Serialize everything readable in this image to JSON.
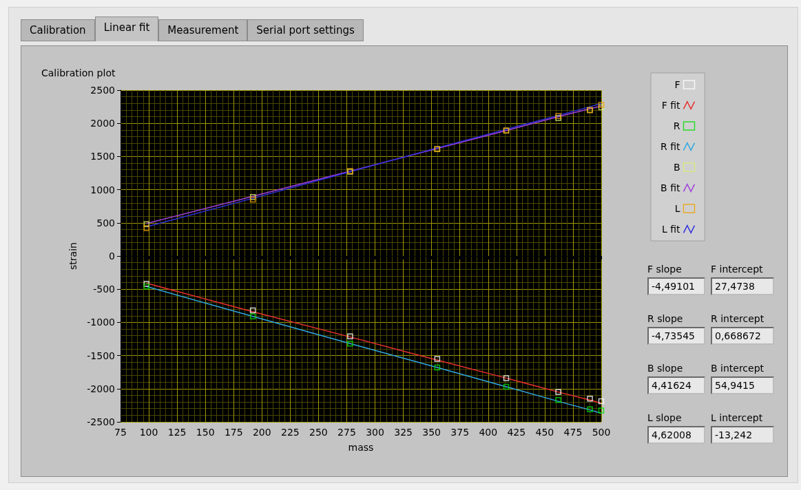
{
  "chart_data": {
    "type": "scatter",
    "title": "Calibration plot",
    "xlabel": "mass",
    "ylabel": "strain",
    "xlim": [
      75,
      500
    ],
    "xticks": [
      75,
      {
        "value": 80,
        "label": null
      },
      {
        "value": 85,
        "label": null
      },
      {
        "value": 90,
        "label": null
      },
      {
        "value": 95,
        "label": null
      },
      100,
      {
        "value": 105,
        "label": null
      },
      {
        "value": 110,
        "label": null
      },
      {
        "value": 115,
        "label": null
      },
      {
        "value": 120,
        "label": null
      },
      125,
      {
        "value": 130,
        "label": null
      },
      {
        "value": 135,
        "label": null
      },
      {
        "value": 140,
        "label": null
      },
      {
        "value": 145,
        "label": null
      },
      150,
      {
        "value": 155,
        "label": null
      },
      {
        "value": 160,
        "label": null
      },
      {
        "value": 165,
        "label": null
      },
      {
        "value": 170,
        "label": null
      },
      175,
      {
        "value": 180,
        "label": null
      },
      {
        "value": 185,
        "label": null
      },
      {
        "value": 190,
        "label": null
      },
      {
        "value": 195,
        "label": null
      },
      200,
      {
        "value": 205,
        "label": null
      },
      {
        "value": 210,
        "label": null
      },
      {
        "value": 215,
        "label": null
      },
      {
        "value": 220,
        "label": null
      },
      225,
      {
        "value": 230,
        "label": null
      },
      {
        "value": 235,
        "label": null
      },
      {
        "value": 240,
        "label": null
      },
      {
        "value": 245,
        "label": null
      },
      250,
      {
        "value": 255,
        "label": null
      },
      {
        "value": 260,
        "label": null
      },
      {
        "value": 265,
        "label": null
      },
      {
        "value": 270,
        "label": null
      },
      275,
      {
        "value": 280,
        "label": null
      },
      {
        "value": 285,
        "label": null
      },
      {
        "value": 290,
        "label": null
      },
      {
        "value": 295,
        "label": null
      },
      300,
      {
        "value": 305,
        "label": null
      },
      {
        "value": 310,
        "label": null
      },
      {
        "value": 315,
        "label": null
      },
      {
        "value": 320,
        "label": null
      },
      325,
      {
        "value": 330,
        "label": null
      },
      {
        "value": 335,
        "label": null
      },
      {
        "value": 340,
        "label": null
      },
      {
        "value": 345,
        "label": null
      },
      350,
      {
        "value": 355,
        "label": null
      },
      {
        "value": 360,
        "label": null
      },
      {
        "value": 365,
        "label": null
      },
      {
        "value": 370,
        "label": null
      },
      375,
      {
        "value": 380,
        "label": null
      },
      {
        "value": 385,
        "label": null
      },
      {
        "value": 390,
        "label": null
      },
      {
        "value": 395,
        "label": null
      },
      400,
      {
        "value": 405,
        "label": null
      },
      {
        "value": 410,
        "label": null
      },
      {
        "value": 415,
        "label": null
      },
      {
        "value": 420,
        "label": null
      },
      425,
      {
        "value": 430,
        "label": null
      },
      {
        "value": 435,
        "label": null
      },
      {
        "value": 440,
        "label": null
      },
      {
        "value": 445,
        "label": null
      },
      450,
      {
        "value": 455,
        "label": null
      },
      {
        "value": 460,
        "label": null
      },
      {
        "value": 465,
        "label": null
      },
      {
        "value": 470,
        "label": null
      },
      475,
      {
        "value": 480,
        "label": null
      },
      {
        "value": 485,
        "label": null
      },
      {
        "value": 490,
        "label": null
      },
      {
        "value": 495,
        "label": null
      },
      500
    ],
    "ylim": [
      -2500,
      2500
    ],
    "yticks": [
      -2500,
      {
        "value": -2400,
        "label": null
      },
      {
        "value": -2300,
        "label": null
      },
      {
        "value": -2200,
        "label": null
      },
      {
        "value": -2100,
        "label": null
      },
      -2000,
      {
        "value": -1900,
        "label": null
      },
      {
        "value": -1800,
        "label": null
      },
      {
        "value": -1700,
        "label": null
      },
      {
        "value": -1600,
        "label": null
      },
      -1500,
      {
        "value": -1400,
        "label": null
      },
      {
        "value": -1300,
        "label": null
      },
      {
        "value": -1200,
        "label": null
      },
      {
        "value": -1100,
        "label": null
      },
      -1000,
      {
        "value": -900,
        "label": null
      },
      {
        "value": -800,
        "label": null
      },
      {
        "value": -700,
        "label": null
      },
      {
        "value": -600,
        "label": null
      },
      -500,
      {
        "value": -400,
        "label": null
      },
      {
        "value": -300,
        "label": null
      },
      {
        "value": -200,
        "label": null
      },
      {
        "value": -100,
        "label": null
      },
      0,
      {
        "value": 100,
        "label": null
      },
      {
        "value": 200,
        "label": null
      },
      {
        "value": 300,
        "label": null
      },
      {
        "value": 400,
        "label": null
      },
      500,
      {
        "value": 600,
        "label": null
      },
      {
        "value": 700,
        "label": null
      },
      {
        "value": 800,
        "label": null
      },
      {
        "value": 900,
        "label": null
      },
      1000,
      {
        "value": 1100,
        "label": null
      },
      {
        "value": 1200,
        "label": null
      },
      {
        "value": 1300,
        "label": null
      },
      {
        "value": 1400,
        "label": null
      },
      1500,
      {
        "value": 1600,
        "label": null
      },
      {
        "value": 1700,
        "label": null
      },
      {
        "value": 1800,
        "label": null
      },
      {
        "value": 1900,
        "label": null
      },
      2000,
      {
        "value": 2100,
        "label": null
      },
      {
        "value": 2200,
        "label": null
      },
      {
        "value": 2300,
        "label": null
      },
      {
        "value": 2400,
        "label": null
      },
      2500
    ],
    "grid": true,
    "legend": "right",
    "x": [
      98,
      192,
      278,
      355,
      416,
      462,
      490,
      500
    ],
    "series": [
      {
        "name": "F",
        "color": "#ffffff",
        "marker": "square",
        "values": [
          -420,
          -820,
          -1210,
          -1550,
          -1840,
          -2050,
          -2150,
          -2190
        ]
      },
      {
        "name": "F fit",
        "type": "line",
        "marker": "none",
        "color": "#e83030",
        "values": [
          -410,
          -840,
          -1220,
          -1570,
          -1840,
          -2050,
          -2170,
          -2220
        ]
      },
      {
        "name": "R",
        "color": "#00e000",
        "marker": "square",
        "values": [
          -460,
          -910,
          -1320,
          -1680,
          -1970,
          -2170,
          -2310,
          -2330
        ]
      },
      {
        "name": "R fit",
        "type": "line",
        "marker": "none",
        "color": "#30a8e0",
        "values": [
          -460,
          -910,
          -1320,
          -1680,
          -1970,
          -2190,
          -2320,
          -2370
        ]
      },
      {
        "name": "B",
        "color": "#d8f070",
        "marker": "square",
        "values": [
          480,
          890,
          1270,
          1610,
          1890,
          2080,
          2200,
          2240
        ]
      },
      {
        "name": "B fit",
        "type": "line",
        "marker": "none",
        "color": "#a040e0",
        "values": [
          490,
          900,
          1280,
          1620,
          1890,
          2100,
          2220,
          2260
        ]
      },
      {
        "name": "L",
        "color": "#f0a000",
        "marker": "square",
        "values": [
          420,
          850,
          1280,
          1610,
          1890,
          2110,
          2200,
          2280
        ]
      },
      {
        "name": "L fit",
        "type": "line",
        "marker": "none",
        "color": "#3030e0",
        "values": [
          440,
          870,
          1270,
          1630,
          1910,
          2120,
          2250,
          2300
        ]
      }
    ],
    "annotations": [
      "Calibration",
      "Linear fit",
      "Measurement",
      "Serial port settings",
      "F slope",
      "-4,49101",
      "F intercept",
      "27,4738",
      "R slope",
      "-4,73545",
      "R intercept",
      "0,668672",
      "B slope",
      "4,41624",
      "B intercept",
      "54,9415",
      "L slope",
      "4,62008",
      "L intercept",
      "-13,242"
    ]
  }
}
